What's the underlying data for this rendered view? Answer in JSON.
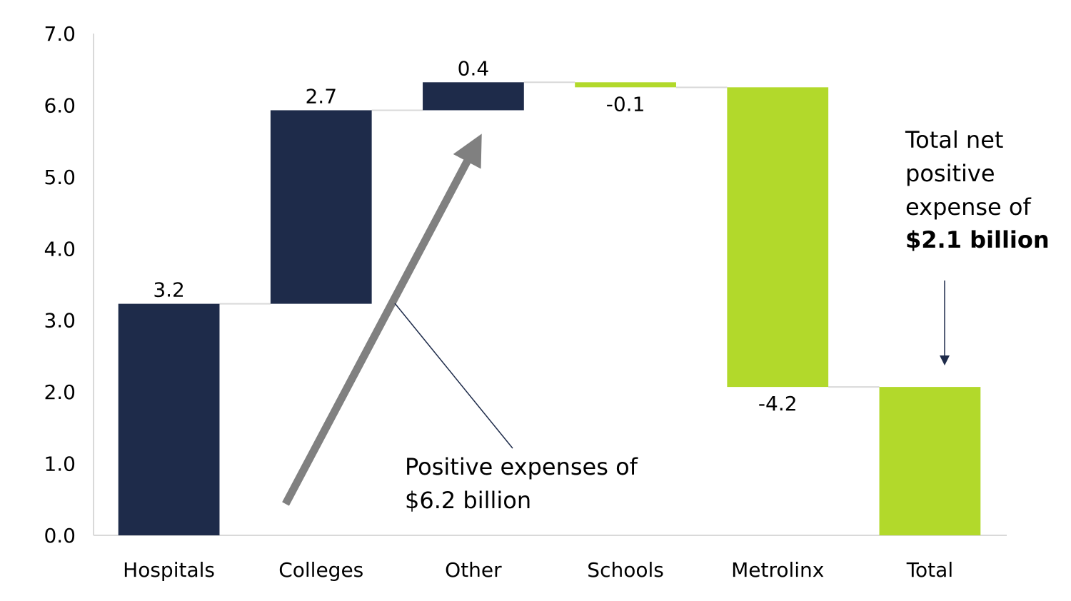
{
  "chart_data": {
    "type": "waterfall",
    "categories": [
      "Hospitals",
      "Colleges",
      "Other",
      "Schools",
      "Metrolinx",
      "Total"
    ],
    "values": [
      3.2,
      2.7,
      0.4,
      -0.1,
      -4.2,
      2.1
    ],
    "bar_starts": [
      0,
      3.23,
      5.93,
      6.32,
      6.25,
      0
    ],
    "bar_ends": [
      3.23,
      5.93,
      6.32,
      6.25,
      2.07,
      2.07
    ],
    "data_labels": [
      "3.2",
      "2.7",
      "0.4",
      "-0.1",
      "-4.2",
      ""
    ],
    "ylim": [
      0,
      7
    ],
    "yticks": [
      "0.0",
      "1.0",
      "2.0",
      "3.0",
      "4.0",
      "5.0",
      "6.0",
      "7.0"
    ],
    "colors": {
      "positive": "#1e2b4a",
      "negative": "#b2d92b",
      "total": "#b2d92b",
      "connector": "#d9d9d9",
      "axis": "#d9d9d9",
      "arrow": "#808080"
    },
    "annotations": {
      "positive_line1": "Positive expenses of",
      "positive_line2": "$6.2 billion",
      "total_line1": "Total net",
      "total_line2": "positive",
      "total_line3": "expense of",
      "total_line4": "$2.1 billion"
    }
  }
}
